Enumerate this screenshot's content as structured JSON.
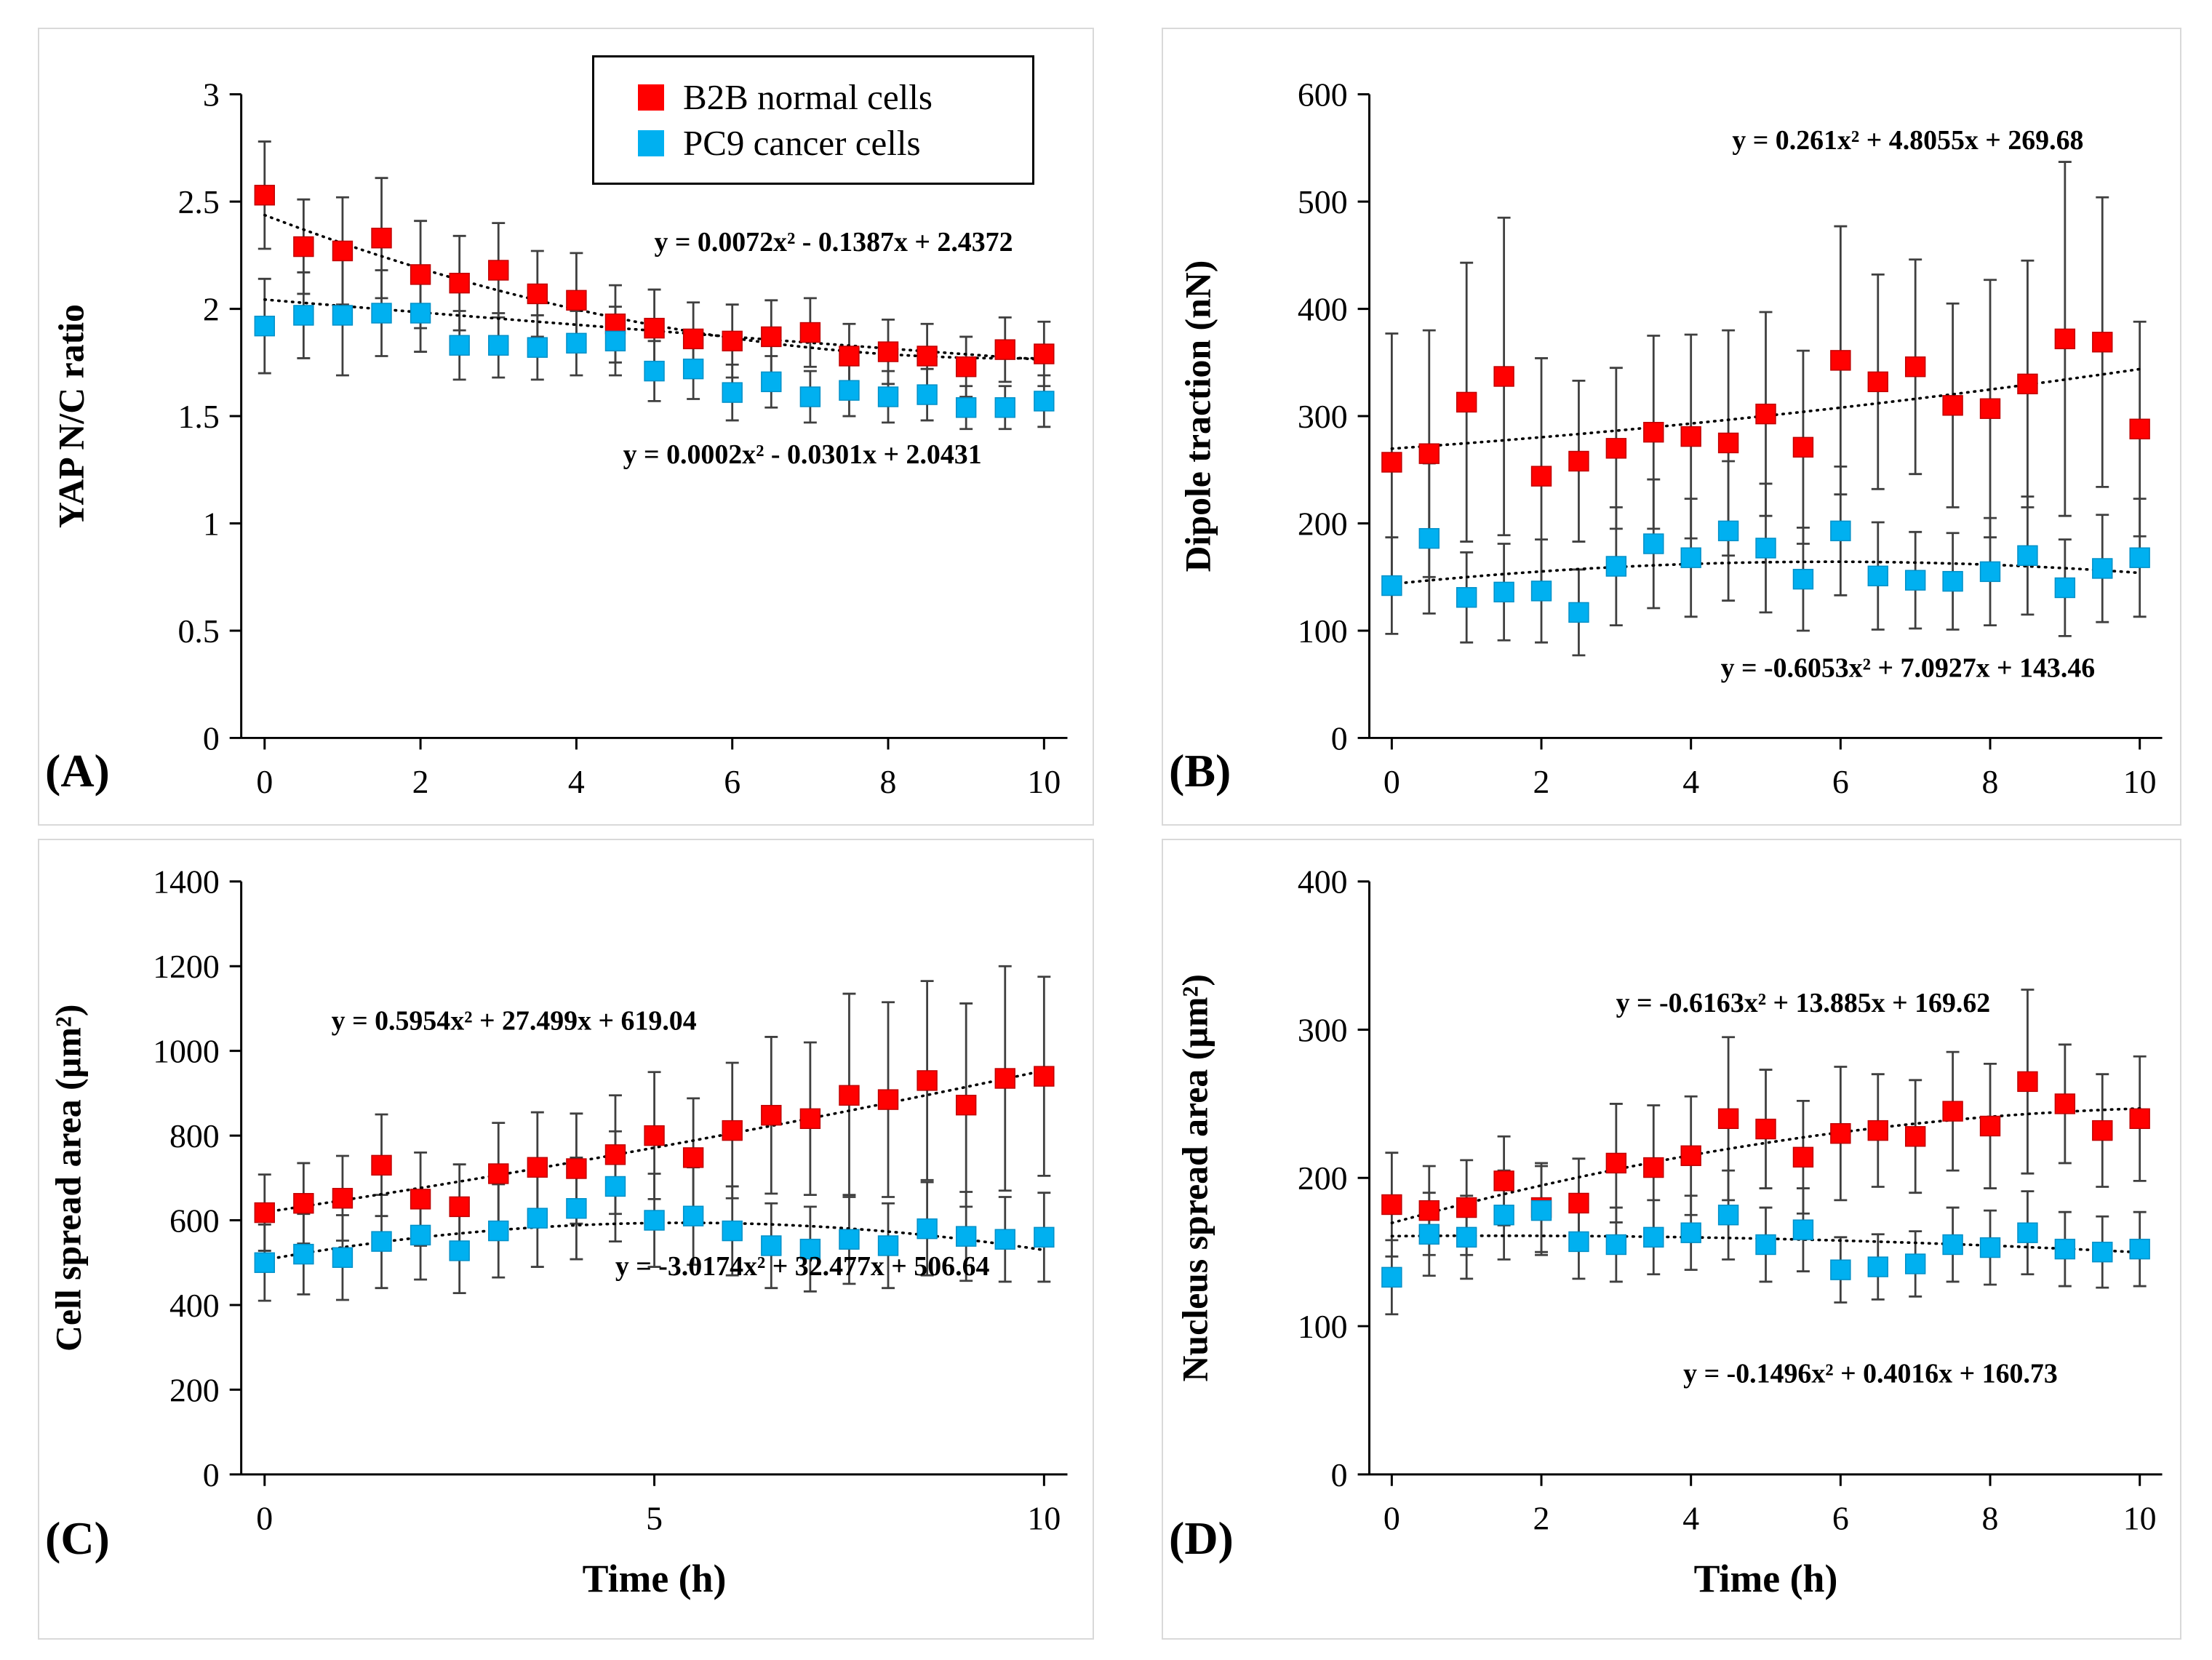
{
  "figure_title": "",
  "chart_data": [
    {
      "id": "A",
      "type": "scatter",
      "panel_label": "(A)",
      "xlabel": "",
      "ylabel": "YAP N/C ratio",
      "xlim": [
        -0.3,
        10.3
      ],
      "ylim": [
        0,
        3
      ],
      "xticks": [
        0,
        2,
        4,
        6,
        8,
        10
      ],
      "yticks": [
        0,
        0.5,
        1,
        1.5,
        2,
        2.5,
        3
      ],
      "grid": false,
      "legend": true,
      "legend_position": "top-right-inside",
      "x": [
        0,
        0.5,
        1,
        1.5,
        2,
        2.5,
        3,
        3.5,
        4,
        4.5,
        5,
        5.5,
        6,
        6.5,
        7,
        7.5,
        8,
        8.5,
        9,
        9.5,
        10
      ],
      "series": [
        {
          "name": "B2B normal cells",
          "color": "#FF0000",
          "values": [
            2.53,
            2.29,
            2.27,
            2.33,
            2.16,
            2.12,
            2.18,
            2.07,
            2.04,
            1.93,
            1.91,
            1.86,
            1.85,
            1.87,
            1.89,
            1.78,
            1.8,
            1.78,
            1.73,
            1.81,
            1.79
          ],
          "errors": [
            0.25,
            0.22,
            0.25,
            0.28,
            0.25,
            0.22,
            0.22,
            0.2,
            0.22,
            0.18,
            0.18,
            0.17,
            0.17,
            0.17,
            0.16,
            0.15,
            0.15,
            0.15,
            0.14,
            0.15,
            0.15
          ],
          "trend": {
            "coeffs": [
              0.0072,
              -0.1387,
              2.4372
            ],
            "equation": "y = 0.0072x² - 0.1387x + 2.4372",
            "eq_pos": [
              7.3,
              2.27
            ]
          }
        },
        {
          "name": "PC9 cancer cells",
          "color": "#00B0F0",
          "values": [
            1.92,
            1.97,
            1.97,
            1.98,
            1.98,
            1.83,
            1.83,
            1.82,
            1.84,
            1.85,
            1.71,
            1.72,
            1.61,
            1.66,
            1.59,
            1.62,
            1.59,
            1.6,
            1.54,
            1.54,
            1.57
          ],
          "errors": [
            0.22,
            0.2,
            0.28,
            0.2,
            0.18,
            0.16,
            0.15,
            0.15,
            0.15,
            0.16,
            0.14,
            0.14,
            0.13,
            0.12,
            0.12,
            0.12,
            0.12,
            0.12,
            0.1,
            0.1,
            0.12
          ],
          "trend": {
            "coeffs": [
              0.0002,
              -0.0301,
              2.0431
            ],
            "equation": "y = 0.0002x² - 0.0301x + 2.0431",
            "eq_pos": [
              6.9,
              1.28
            ]
          }
        }
      ]
    },
    {
      "id": "B",
      "type": "scatter",
      "panel_label": "(B)",
      "xlabel": "",
      "ylabel": "Dipole traction (nN)",
      "xlim": [
        -0.3,
        10.3
      ],
      "ylim": [
        0,
        600
      ],
      "xticks": [
        0,
        2,
        4,
        6,
        8,
        10
      ],
      "yticks": [
        0,
        100,
        200,
        300,
        400,
        500,
        600
      ],
      "grid": false,
      "legend": false,
      "x": [
        0,
        0.5,
        1,
        1.5,
        2,
        2.5,
        3,
        3.5,
        4,
        4.5,
        5,
        5.5,
        6,
        6.5,
        7,
        7.5,
        8,
        8.5,
        9,
        9.5,
        10
      ],
      "series": [
        {
          "name": "B2B normal cells",
          "color": "#FF0000",
          "values": [
            257,
            265,
            313,
            337,
            244,
            258,
            270,
            285,
            281,
            275,
            302,
            271,
            352,
            332,
            346,
            310,
            307,
            330,
            372,
            369,
            288
          ],
          "errors": [
            120,
            115,
            130,
            148,
            110,
            75,
            75,
            90,
            95,
            105,
            95,
            90,
            125,
            100,
            100,
            95,
            120,
            115,
            165,
            135,
            100
          ],
          "trend": {
            "coeffs": [
              0.261,
              4.8055,
              269.68
            ],
            "equation": "y = 0.261x² + 4.8055x + 269.68",
            "eq_pos": [
              6.9,
              549
            ]
          }
        },
        {
          "name": "PC9 cancer cells",
          "color": "#00B0F0",
          "values": [
            142,
            186,
            131,
            136,
            137,
            117,
            160,
            181,
            168,
            193,
            177,
            148,
            193,
            151,
            147,
            146,
            155,
            170,
            140,
            158,
            168
          ],
          "errors": [
            45,
            70,
            42,
            45,
            48,
            40,
            55,
            60,
            55,
            65,
            60,
            48,
            60,
            50,
            45,
            45,
            50,
            55,
            45,
            50,
            55
          ],
          "trend": {
            "coeffs": [
              -0.6053,
              7.0927,
              143.46
            ],
            "equation": "y = -0.6053x² + 7.0927x + 143.46",
            "eq_pos": [
              6.9,
              57
            ]
          }
        }
      ]
    },
    {
      "id": "C",
      "type": "scatter",
      "panel_label": "(C)",
      "xlabel": "Time (h)",
      "ylabel": "Cell spread area (µm²)",
      "xlim": [
        -0.3,
        10.3
      ],
      "ylim": [
        0,
        1400
      ],
      "xticks": [
        0,
        5,
        10
      ],
      "yticks": [
        0,
        200,
        400,
        600,
        800,
        1000,
        1200,
        1400
      ],
      "grid": false,
      "legend": false,
      "x": [
        0,
        0.5,
        1,
        1.5,
        2,
        2.5,
        3,
        3.5,
        4,
        4.5,
        5,
        5.5,
        6,
        6.5,
        7,
        7.5,
        8,
        8.5,
        9,
        9.5,
        10
      ],
      "series": [
        {
          "name": "B2B normal cells",
          "color": "#FF0000",
          "values": [
            618,
            640,
            652,
            730,
            650,
            632,
            710,
            725,
            722,
            755,
            800,
            748,
            812,
            848,
            840,
            895,
            885,
            930,
            872,
            935,
            940
          ],
          "errors": [
            90,
            95,
            100,
            120,
            110,
            100,
            120,
            130,
            130,
            140,
            150,
            140,
            160,
            185,
            180,
            240,
            230,
            235,
            240,
            265,
            235
          ],
          "trend": {
            "coeffs": [
              0.5954,
              27.499,
              619.04
            ],
            "equation": "y = 0.5954x² + 27.499x + 619.04",
            "eq_pos": [
              3.2,
              1050
            ]
          }
        },
        {
          "name": "PC9 cancer cells",
          "color": "#00B0F0",
          "values": [
            500,
            520,
            512,
            550,
            565,
            528,
            575,
            605,
            628,
            680,
            600,
            610,
            575,
            540,
            532,
            555,
            540,
            580,
            562,
            555,
            560
          ],
          "errors": [
            90,
            95,
            100,
            110,
            105,
            100,
            110,
            115,
            120,
            130,
            110,
            115,
            105,
            100,
            100,
            105,
            100,
            110,
            105,
            100,
            105
          ],
          "trend": {
            "coeffs": [
              -3.0174,
              32.477,
              506.64
            ],
            "equation": "y = -3.0174x² + 32.477x + 506.64",
            "eq_pos": [
              6.9,
              470
            ]
          }
        }
      ]
    },
    {
      "id": "D",
      "type": "scatter",
      "panel_label": "(D)",
      "xlabel": "Time (h)",
      "ylabel": "Nucleus spread area (µm²)",
      "xlim": [
        -0.3,
        10.3
      ],
      "ylim": [
        0,
        400
      ],
      "xticks": [
        0,
        2,
        4,
        6,
        8,
        10
      ],
      "yticks": [
        0,
        100,
        200,
        300,
        400
      ],
      "grid": false,
      "legend": false,
      "x": [
        0,
        0.5,
        1,
        1.5,
        2,
        2.5,
        3,
        3.5,
        4,
        4.5,
        5,
        5.5,
        6,
        6.5,
        7,
        7.5,
        8,
        8.5,
        9,
        9.5,
        10
      ],
      "series": [
        {
          "name": "B2B normal cells",
          "color": "#FF0000",
          "values": [
            182,
            178,
            180,
            198,
            180,
            183,
            210,
            207,
            215,
            240,
            233,
            214,
            230,
            232,
            228,
            245,
            235,
            265,
            250,
            232,
            240
          ],
          "errors": [
            35,
            30,
            32,
            30,
            30,
            30,
            40,
            42,
            40,
            55,
            40,
            38,
            45,
            38,
            38,
            40,
            42,
            62,
            40,
            38,
            42
          ],
          "trend": {
            "coeffs": [
              -0.6163,
              13.885,
              169.62
            ],
            "equation": "y = -0.6163x² + 13.885x + 169.62",
            "eq_pos": [
              5.5,
              312
            ]
          }
        },
        {
          "name": "PC9 cancer cells",
          "color": "#00B0F0",
          "values": [
            133,
            162,
            160,
            175,
            178,
            157,
            155,
            160,
            163,
            175,
            155,
            165,
            138,
            140,
            142,
            155,
            153,
            163,
            152,
            150,
            152
          ],
          "errors": [
            25,
            28,
            28,
            30,
            30,
            25,
            25,
            25,
            25,
            30,
            25,
            28,
            22,
            22,
            22,
            25,
            25,
            28,
            25,
            24,
            25
          ],
          "trend": {
            "coeffs": [
              -0.1496,
              0.4016,
              160.73
            ],
            "equation": "y = -0.1496x² + 0.4016x + 160.73",
            "eq_pos": [
              6.4,
              62
            ]
          }
        }
      ]
    }
  ]
}
